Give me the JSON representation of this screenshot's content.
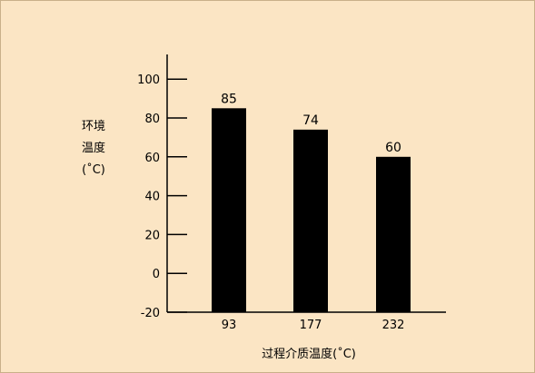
{
  "chart_data": {
    "type": "bar",
    "categories": [
      "93",
      "177",
      "232"
    ],
    "values": [
      85,
      74,
      60
    ],
    "data_labels": [
      "85",
      "74",
      "60"
    ],
    "title": "",
    "xlabel": "过程介质温度(˚C)",
    "ylabel_lines": [
      "环境",
      "温度",
      "(˚C)"
    ],
    "ylim": [
      -20,
      110
    ],
    "yticks": [
      -20,
      0,
      20,
      40,
      60,
      80,
      100
    ],
    "ytick_labels": [
      "-20",
      "0",
      "20",
      "40",
      "60",
      "80",
      "100"
    ],
    "grid": false,
    "legend": "none",
    "colors": {
      "background": "#fbe5c4",
      "bar": "#000000",
      "axis": "#000000"
    }
  }
}
